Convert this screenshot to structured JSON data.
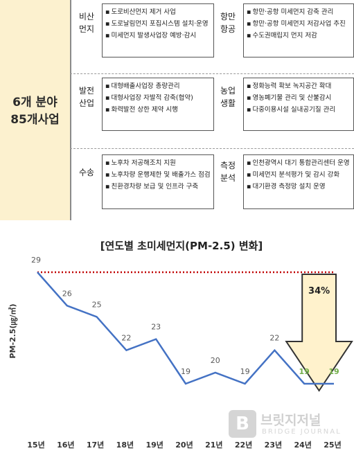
{
  "table": {
    "left_line1": "6개 분야",
    "left_line2": "85개사업",
    "rows": [
      {
        "left_cat": [
          "비산",
          "먼지"
        ],
        "left_items": [
          "도로비산먼지 제거 사업",
          "도로날림먼지 포집시스템 설치·운영",
          "미세먼지 발생사업장 예방·감시"
        ],
        "right_cat": [
          "항만",
          "항공"
        ],
        "right_items": [
          "항만·공항 미세먼지 감축 관리",
          "항만·공항 미세먼지 저감사업 추진",
          "수도권매립지 먼지 저감"
        ]
      },
      {
        "left_cat": [
          "발전",
          "산업"
        ],
        "left_items": [
          "대형배출사업장 총량관리",
          "대형사업장 자발적 감축(협약)",
          "화력발전 상한 제약 시행"
        ],
        "right_cat": [
          "농업",
          "생활"
        ],
        "right_items": [
          "정화능력 확보 녹지공간 확대",
          "영농폐기물 관리 및 산불감시",
          "다중이용시설 실내공기질 관리"
        ]
      },
      {
        "left_cat": [
          "수송"
        ],
        "left_items": [
          "노후차 저공해조치 지원",
          "노후차량 운행제한 및 배출가스 점검",
          "친환경차량 보급 및 인프라 구축"
        ],
        "right_cat": [
          "측정",
          "분석"
        ],
        "right_items": [
          "인천광역시 대기 통합관리센터 운영",
          "미세먼지 분석평가 및 감시 강화",
          "대기환경 측정망 설치 운영"
        ]
      }
    ]
  },
  "chart_data": {
    "type": "line",
    "title": "[연도별 초미세먼지(PM-2.5) 변화]",
    "ylabel": "PM-2.5(㎍/㎥)",
    "categories": [
      "15년",
      "16년",
      "17년",
      "18년",
      "19년",
      "20년",
      "21년",
      "22년",
      "23년",
      "24년",
      "25년"
    ],
    "values": [
      29,
      26,
      25,
      22,
      23,
      19,
      20,
      19,
      22,
      19,
      19
    ],
    "value_labels": [
      "29",
      "26",
      "25",
      "22",
      "23",
      "19",
      "20",
      "19",
      "22",
      "19",
      "19"
    ],
    "reference_value": 29,
    "ylim": [
      17.5,
      30.5
    ],
    "grid": false,
    "annotation": "34%",
    "colors": {
      "line": "#4472c4",
      "reference": "#c00000",
      "label": "#595959",
      "highlight_label": "#70ad47",
      "arrow_fill": "#fff2cc",
      "arrow_stroke": "#333333"
    }
  },
  "watermark": {
    "main": "브릿지저널",
    "sub": "BRIDGE JOURNAL"
  }
}
